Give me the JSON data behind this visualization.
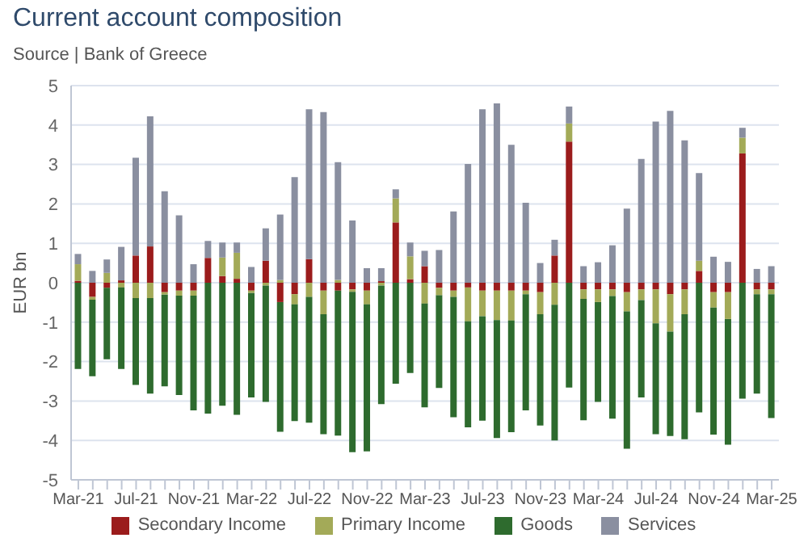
{
  "chart_data": {
    "type": "bar",
    "title": "Current account composition",
    "subtitle": "Source | Bank of Greece",
    "ylabel": "EUR bn",
    "stacked": true,
    "grid": "y",
    "legend": "bottom",
    "categories": [
      "Mar-21",
      null,
      null,
      null,
      "Jul-21",
      null,
      null,
      null,
      "Nov-21",
      null,
      null,
      null,
      "Mar-22",
      null,
      null,
      null,
      "Jul-22",
      null,
      null,
      null,
      "Nov-22",
      null,
      null,
      null,
      "Mar-23",
      null,
      null,
      null,
      "Jul-23",
      null,
      null,
      null,
      "Nov-23",
      null,
      null,
      null,
      "Mar-24",
      null,
      null,
      null,
      "Jul-24",
      null,
      null,
      null,
      "Nov-24",
      null,
      null,
      null,
      "Mar-25"
    ],
    "ylim": [
      -5,
      5
    ],
    "yticks": [
      -5,
      -4,
      -3,
      -2,
      -1,
      0,
      1,
      2,
      3,
      4,
      5
    ],
    "series": [
      {
        "name": "Secondary Income",
        "color": "#9b1c1c",
        "values": [
          0.05,
          -0.36,
          -0.13,
          0.06,
          0.69,
          0.92,
          -0.24,
          -0.2,
          -0.2,
          0.63,
          0.17,
          0.1,
          -0.2,
          0.56,
          -0.49,
          -0.29,
          0.6,
          -0.2,
          -0.2,
          -0.17,
          -0.2,
          0.04,
          1.53,
          0.09,
          0.42,
          -0.13,
          -0.2,
          -0.12,
          -0.2,
          -0.2,
          -0.2,
          -0.2,
          -0.24,
          0.69,
          3.58,
          -0.17,
          -0.17,
          -0.17,
          -0.24,
          -0.17,
          -0.17,
          -0.29,
          -0.17,
          0.3,
          -0.24,
          -0.24,
          3.28,
          -0.17,
          -0.17
        ]
      },
      {
        "name": "Primary Income",
        "color": "#a3aa58",
        "values": [
          0.42,
          -0.07,
          0.25,
          -0.12,
          -0.39,
          -0.39,
          -0.06,
          -0.13,
          -0.13,
          0,
          0.47,
          0.66,
          -0.06,
          -0.07,
          0.07,
          -0.26,
          -0.36,
          -0.6,
          0.07,
          -0.06,
          -0.35,
          -0.07,
          0.61,
          0.58,
          -0.53,
          -0.19,
          -0.16,
          -0.86,
          -0.65,
          -0.75,
          -0.76,
          -0.09,
          -0.56,
          -0.56,
          0.46,
          -0.24,
          -0.32,
          -0.17,
          -0.49,
          -0.27,
          -0.86,
          -0.95,
          -0.63,
          0.26,
          -0.39,
          -0.68,
          0.4,
          -0.12,
          -0.12
        ]
      },
      {
        "name": "Goods",
        "color": "#2e6b2e",
        "values": [
          -2.19,
          -1.94,
          -1.81,
          -2.07,
          -2.2,
          -2.42,
          -2.33,
          -2.52,
          -2.91,
          -3.32,
          -3.12,
          -3.35,
          -2.65,
          -2.95,
          -3.29,
          -2.96,
          -3.19,
          -3.04,
          -3.68,
          -4.07,
          -3.73,
          -3.01,
          -2.56,
          -2.29,
          -2.63,
          -2.35,
          -3.05,
          -2.69,
          -2.65,
          -2.99,
          -2.83,
          -2.95,
          -2.82,
          -3.44,
          -2.66,
          -3.08,
          -2.53,
          -3.11,
          -3.48,
          -2.47,
          -2.81,
          -2.65,
          -3.17,
          -3.29,
          -3.22,
          -3.19,
          -2.94,
          -2.52,
          -3.14
        ]
      },
      {
        "name": "Services",
        "color": "#8a8fa0",
        "values": [
          0.26,
          0.3,
          0.34,
          0.85,
          2.48,
          3.3,
          2.32,
          1.71,
          0.47,
          0.43,
          0.38,
          0.26,
          0.4,
          0.82,
          1.66,
          2.68,
          3.8,
          4.33,
          2.99,
          1.58,
          0.37,
          0.33,
          0.23,
          0.35,
          0.39,
          0.83,
          1.81,
          3.01,
          4.4,
          4.55,
          3.5,
          2.03,
          0.5,
          0.4,
          0.43,
          0.42,
          0.52,
          0.95,
          1.88,
          3.14,
          4.09,
          4.36,
          3.61,
          2.22,
          0.66,
          0.53,
          0.25,
          0.35,
          0.42
        ]
      }
    ]
  }
}
